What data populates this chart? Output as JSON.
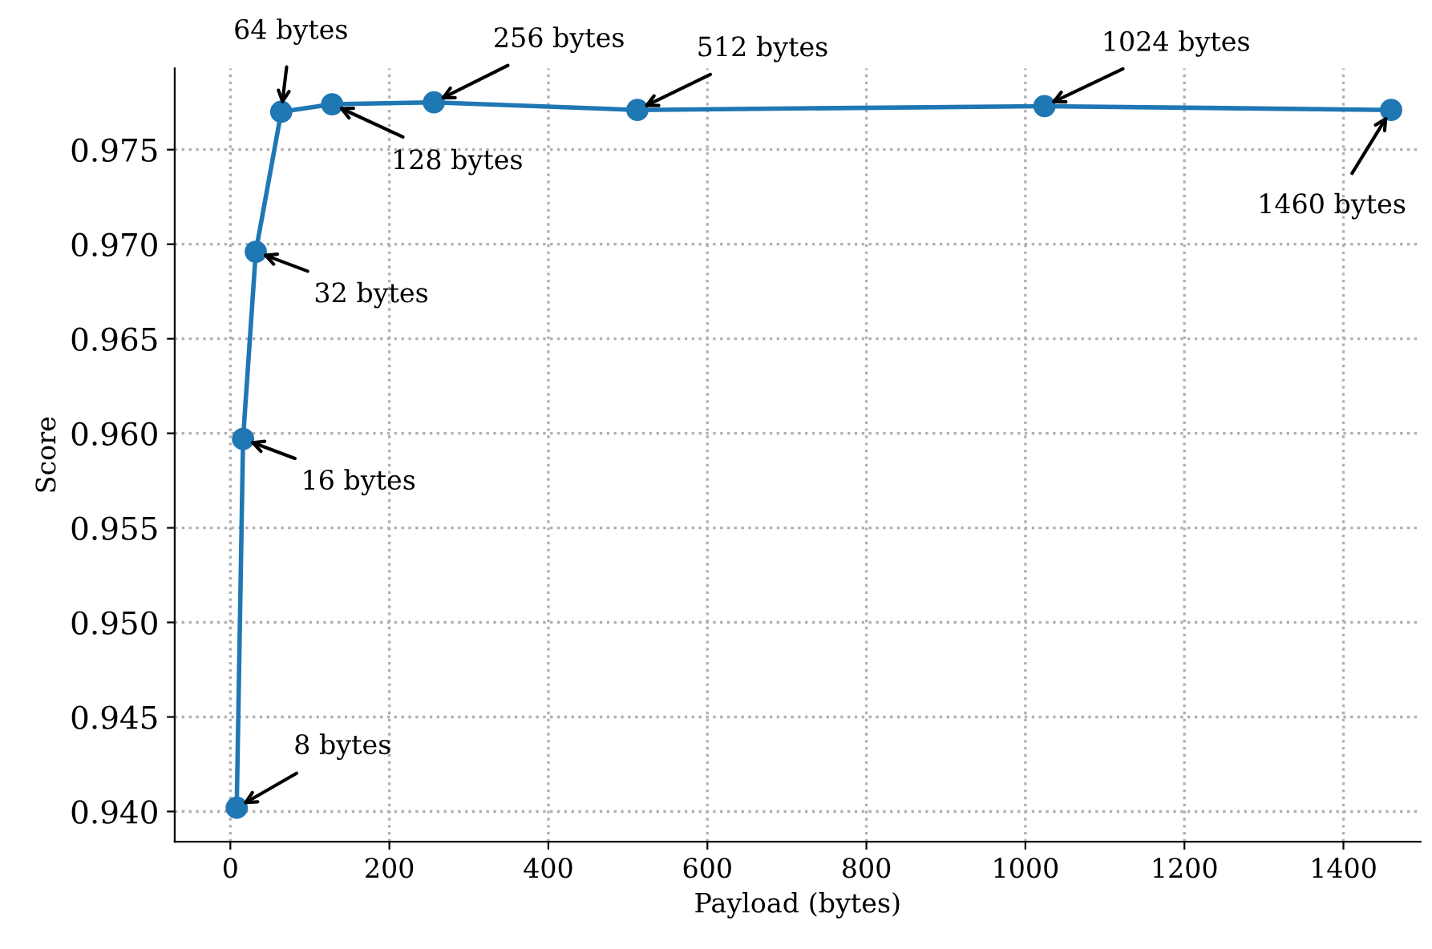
{
  "chart_data": {
    "type": "line",
    "xlabel": "Payload (bytes)",
    "ylabel": "Score",
    "x": [
      8,
      16,
      32,
      64,
      128,
      256,
      512,
      1024,
      1460
    ],
    "series": [
      {
        "color": "#1f77b4",
        "values": [
          0.9402,
          0.9597,
          0.9696,
          0.977,
          0.9774,
          0.9775,
          0.9771,
          0.9773,
          0.9771
        ]
      }
    ],
    "marker": "circle",
    "line_style": "solid",
    "grid": true,
    "xlim": [
      -70,
      1497
    ],
    "xticks": [
      0,
      200,
      400,
      600,
      800,
      1000,
      1200,
      1400
    ],
    "ylim": [
      0.9384,
      0.9793
    ],
    "yticks": [
      {
        "value": 0.94,
        "label": "0.940"
      },
      {
        "value": 0.945,
        "label": "0.945"
      },
      {
        "value": 0.95,
        "label": "0.950"
      },
      {
        "value": 0.955,
        "label": "0.955"
      },
      {
        "value": 0.96,
        "label": "0.960"
      },
      {
        "value": 0.965,
        "label": "0.965"
      },
      {
        "value": 0.97,
        "label": "0.970"
      },
      {
        "value": 0.975,
        "label": "0.975"
      }
    ],
    "annotations": [
      {
        "text": "8 bytes",
        "x": 8,
        "y": 0.9402
      },
      {
        "text": "16 bytes",
        "x": 16,
        "y": 0.9597
      },
      {
        "text": "32 bytes",
        "x": 32,
        "y": 0.9696
      },
      {
        "text": "64 bytes",
        "x": 64,
        "y": 0.977
      },
      {
        "text": "128 bytes",
        "x": 128,
        "y": 0.9774
      },
      {
        "text": "256 bytes",
        "x": 256,
        "y": 0.9775
      },
      {
        "text": "512 bytes",
        "x": 512,
        "y": 0.9771
      },
      {
        "text": "1024 bytes",
        "x": 1024,
        "y": 0.9773
      },
      {
        "text": "1460 bytes",
        "x": 1460,
        "y": 0.9771
      }
    ]
  }
}
